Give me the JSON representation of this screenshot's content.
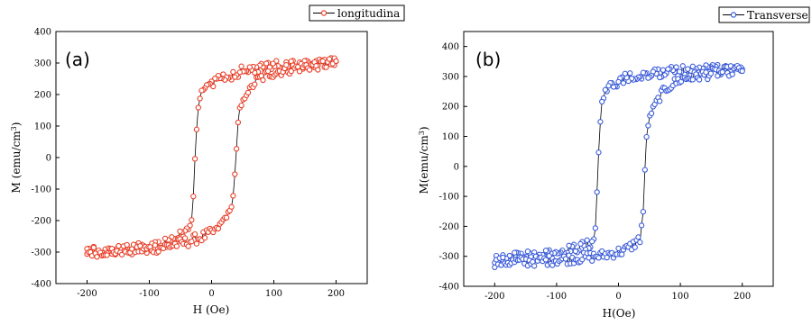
{
  "chart_data": [
    {
      "type": "scatter",
      "panel_label": "(a)",
      "xlabel": "H (Oe)",
      "ylabel": "M (emu/cm",
      "ylabel_sup": "3",
      "ylabel_close": ")",
      "xlim": [
        -250,
        250
      ],
      "ylim": [
        -400,
        400
      ],
      "xticks": [
        -200,
        -100,
        0,
        100,
        200
      ],
      "yticks": [
        -400,
        -300,
        -200,
        -100,
        0,
        100,
        200,
        300,
        400
      ],
      "legend": {
        "placement": "top-right",
        "label": "longitudina"
      },
      "series": [
        {
          "name": "longitudina",
          "color": "#e8402a",
          "descending": {
            "x": [
              200,
              150,
              100,
              75,
              55,
              40,
              20,
              0,
              -10,
              -18,
              -22,
              -25,
              -28,
              -30,
              -32,
              -35,
              -40,
              -50,
              -60,
              -80,
              -100,
              -150,
              -200
            ],
            "y": [
              300,
              295,
              290,
              285,
              278,
              270,
              255,
              240,
              225,
              200,
              150,
              50,
              -50,
              -150,
              -200,
              -220,
              -235,
              -250,
              -262,
              -275,
              -285,
              -295,
              -300
            ]
          },
          "ascending": {
            "x": [
              -200,
              -150,
              -100,
              -75,
              -55,
              -40,
              -20,
              0,
              10,
              18,
              30,
              35,
              38,
              41,
              43,
              45,
              50,
              55,
              70,
              90,
              120,
              160,
              200
            ],
            "y": [
              -300,
              -295,
              -290,
              -283,
              -275,
              -268,
              -255,
              -240,
              -225,
              -200,
              -170,
              -120,
              -30,
              50,
              120,
              150,
              175,
              200,
              240,
              265,
              280,
              292,
              300
            ]
          }
        }
      ]
    },
    {
      "type": "scatter",
      "panel_label": "(b)",
      "xlabel": "H(Oe)",
      "ylabel": "M(emu/cm",
      "ylabel_sup": "3",
      "ylabel_close": ")",
      "xlim": [
        -250,
        250
      ],
      "ylim": [
        -400,
        450
      ],
      "xticks": [
        -200,
        -100,
        0,
        100,
        200
      ],
      "yticks": [
        -400,
        -300,
        -200,
        -100,
        0,
        100,
        200,
        300,
        400
      ],
      "legend": {
        "placement": "top-right",
        "label": "Transverse"
      },
      "series": [
        {
          "name": "Transverse",
          "color": "#3a5bd9",
          "descending": {
            "x": [
              200,
              150,
              100,
              60,
              30,
              10,
              -5,
              -15,
              -22,
              -28,
              -31,
              -33,
              -35,
              -37,
              -40,
              -45,
              -60,
              -80,
              -100,
              -150,
              -200
            ],
            "y": [
              325,
              322,
              318,
              312,
              305,
              295,
              280,
              265,
              255,
              200,
              100,
              0,
              -100,
              -200,
              -240,
              -255,
              -268,
              -280,
              -290,
              -300,
              -310
            ]
          },
          "ascending": {
            "x": [
              -200,
              -150,
              -100,
              -60,
              -30,
              -10,
              5,
              15,
              25,
              35,
              40,
              42,
              44,
              46,
              50,
              55,
              65,
              80,
              100,
              150,
              200
            ],
            "y": [
              -320,
              -318,
              -312,
              -305,
              -298,
              -290,
              -283,
              -275,
              -260,
              -240,
              -150,
              -50,
              50,
              120,
              160,
              190,
              230,
              265,
              290,
              310,
              325
            ]
          }
        }
      ]
    }
  ]
}
